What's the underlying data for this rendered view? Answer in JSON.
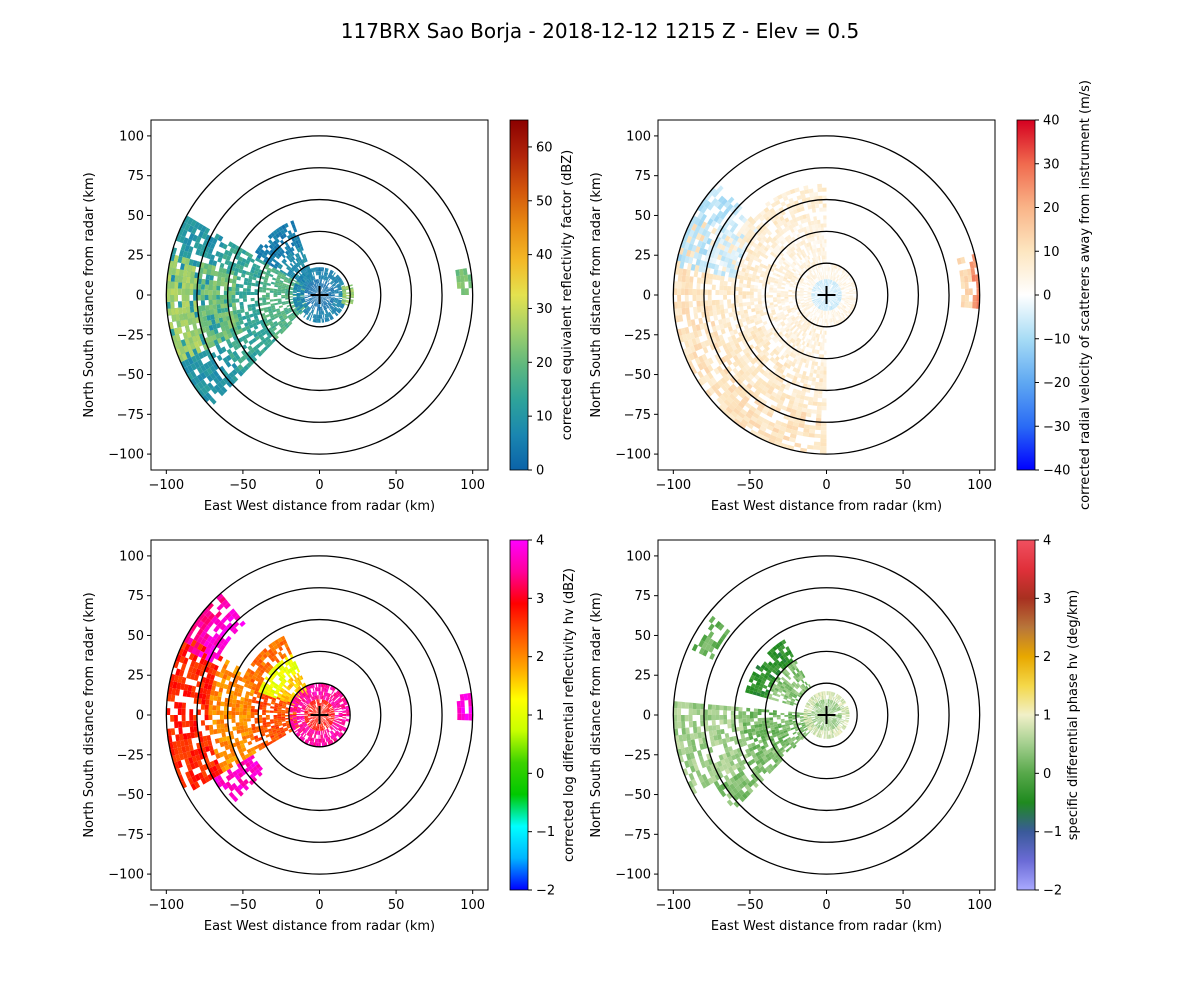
{
  "figure": {
    "title": "117BRX Sao Borja - 2018-12-12 1215 Z -  Elev = 0.5"
  },
  "chart_data": [
    {
      "type": "radar-ppi",
      "field": "reflectivity",
      "xlabel": "East West distance from radar (km)",
      "ylabel": "North South distance from radar (km)",
      "xlim": [
        -110,
        110
      ],
      "ylim": [
        -110,
        110
      ],
      "xticks": [
        -100,
        -50,
        0,
        50,
        100
      ],
      "yticks": [
        -100,
        -75,
        -50,
        -25,
        0,
        25,
        50,
        75,
        100
      ],
      "range_rings_km": [
        20,
        40,
        60,
        80,
        100
      ],
      "radar_marker": "+",
      "colorbar": {
        "label": "corrected equivalent reflectivity factor (dBZ)",
        "min": 0,
        "max": 65,
        "ticks": [
          0,
          10,
          20,
          30,
          40,
          50,
          60
        ],
        "colors": [
          "#0b63a8",
          "#1a86b0",
          "#2ea39a",
          "#5fb87e",
          "#a3d06a",
          "#e4e24f",
          "#f3b826",
          "#e88a12",
          "#d2550b",
          "#b0230a",
          "#8b0000"
        ]
      },
      "echo_regions": [
        {
          "az1": 225,
          "az2": 300,
          "r1": 10,
          "r2": 99,
          "values": [
            18,
            14,
            10
          ]
        },
        {
          "az1": 245,
          "az2": 285,
          "r1": 55,
          "r2": 100,
          "values": [
            22,
            26
          ]
        },
        {
          "az1": 300,
          "az2": 340,
          "r1": 10,
          "r2": 50,
          "values": [
            8,
            5
          ]
        },
        {
          "az1": 0,
          "az2": 360,
          "r1": 0,
          "r2": 16,
          "values": [
            2,
            6
          ]
        },
        {
          "az1": 70,
          "az2": 110,
          "r1": 15,
          "r2": 22,
          "values": [
            25
          ]
        },
        {
          "az1": 80,
          "az2": 90,
          "r1": 90,
          "r2": 100,
          "values": [
            22
          ]
        }
      ]
    },
    {
      "type": "radar-ppi",
      "field": "velocity",
      "xlabel": "East West distance from radar (km)",
      "ylabel": "North South distance from radar (km)",
      "xlim": [
        -110,
        110
      ],
      "ylim": [
        -110,
        110
      ],
      "xticks": [
        -100,
        -50,
        0,
        50,
        100
      ],
      "yticks": [
        -100,
        -75,
        -50,
        -25,
        0,
        25,
        50,
        75,
        100
      ],
      "range_rings_km": [
        20,
        40,
        60,
        80,
        100
      ],
      "radar_marker": "+",
      "colorbar": {
        "label": "corrected radial velocity of scatterers away from instrument (m/s)",
        "min": -40,
        "max": 40,
        "ticks": [
          -40,
          -30,
          -20,
          -10,
          0,
          10,
          20,
          30,
          40
        ],
        "colors": [
          "#0000ff",
          "#2a6bf5",
          "#5fa8f2",
          "#a7dcf5",
          "#ffffff",
          "#fde6c0",
          "#f9b488",
          "#f06a4e",
          "#d50020"
        ]
      },
      "echo_regions": [
        {
          "az1": 180,
          "az2": 300,
          "r1": 20,
          "r2": 99,
          "values": [
            6,
            8,
            10
          ]
        },
        {
          "az1": 280,
          "az2": 315,
          "r1": 60,
          "r2": 100,
          "values": [
            -5,
            -8
          ]
        },
        {
          "az1": 300,
          "az2": 360,
          "r1": 20,
          "r2": 70,
          "values": [
            5,
            7
          ]
        },
        {
          "az1": 0,
          "az2": 360,
          "r1": 0,
          "r2": 18,
          "values": [
            -6,
            4
          ]
        },
        {
          "az1": 75,
          "az2": 95,
          "r1": 88,
          "r2": 100,
          "values": [
            12,
            25
          ]
        }
      ]
    },
    {
      "type": "radar-ppi",
      "field": "differential-reflectivity",
      "xlabel": "East West distance from radar (km)",
      "ylabel": "North South distance from radar (km)",
      "xlim": [
        -110,
        110
      ],
      "ylim": [
        -110,
        110
      ],
      "xticks": [
        -100,
        -50,
        0,
        50,
        100
      ],
      "yticks": [
        -100,
        -75,
        -50,
        -25,
        0,
        25,
        50,
        75,
        100
      ],
      "range_rings_km": [
        20,
        40,
        60,
        80,
        100
      ],
      "radar_marker": "+",
      "colorbar": {
        "label": "corrected log differential reflectivity hv (dBZ)",
        "min": -2,
        "max": 4,
        "ticks": [
          -2,
          -1,
          0,
          1,
          2,
          3,
          4
        ],
        "colors": [
          "#0000ff",
          "#00b4ff",
          "#00ffff",
          "#00c800",
          "#3cd200",
          "#c8ff00",
          "#ffff00",
          "#ffa500",
          "#ff5500",
          "#ff0000",
          "#ff0099",
          "#ff00ff"
        ]
      },
      "echo_regions": [
        {
          "az1": 240,
          "az2": 300,
          "r1": 15,
          "r2": 99,
          "values": [
            2.4,
            2.0,
            2.7
          ]
        },
        {
          "az1": 290,
          "az2": 335,
          "r1": 15,
          "r2": 55,
          "values": [
            1.6,
            1.1,
            2.2
          ]
        },
        {
          "az1": 295,
          "az2": 320,
          "r1": 75,
          "r2": 99,
          "values": [
            3.8,
            3.5
          ]
        },
        {
          "az1": 225,
          "az2": 240,
          "r1": 50,
          "r2": 80,
          "values": [
            3.7
          ]
        },
        {
          "az1": 0,
          "az2": 360,
          "r1": 0,
          "r2": 18,
          "values": [
            2.8,
            3.5
          ]
        },
        {
          "az1": 82,
          "az2": 92,
          "r1": 90,
          "r2": 100,
          "values": [
            3.8
          ]
        }
      ]
    },
    {
      "type": "radar-ppi",
      "field": "specific-differential-phase",
      "xlabel": "East West distance from radar (km)",
      "ylabel": "North South distance from radar (km)",
      "xlim": [
        -110,
        110
      ],
      "ylim": [
        -110,
        110
      ],
      "xticks": [
        -100,
        -50,
        0,
        50,
        100
      ],
      "yticks": [
        -100,
        -75,
        -50,
        -25,
        0,
        25,
        50,
        75,
        100
      ],
      "range_rings_km": [
        20,
        40,
        60,
        80,
        100
      ],
      "radar_marker": "+",
      "colorbar": {
        "label": "specific differential phase hv (deg/km)",
        "min": -2,
        "max": 4,
        "ticks": [
          -2,
          -1,
          0,
          1,
          2,
          3,
          4
        ],
        "colors": [
          "#a9a9ff",
          "#6b6bd6",
          "#3a5a9a",
          "#1f8a1f",
          "#57a84a",
          "#a3cf8e",
          "#f1f0c8",
          "#f4d84a",
          "#e8a800",
          "#b8763a",
          "#a83020",
          "#e0303a",
          "#f05060"
        ]
      },
      "echo_regions": [
        {
          "az1": 240,
          "az2": 275,
          "r1": 10,
          "r2": 99,
          "values": [
            0.2,
            0.5
          ]
        },
        {
          "az1": 225,
          "az2": 240,
          "r1": 10,
          "r2": 85,
          "values": [
            0.3
          ]
        },
        {
          "az1": 285,
          "az2": 330,
          "r1": 20,
          "r2": 55,
          "values": [
            0.3,
            -0.4
          ]
        },
        {
          "az1": 295,
          "az2": 310,
          "r1": 82,
          "r2": 95,
          "values": [
            0.1
          ]
        },
        {
          "az1": 0,
          "az2": 360,
          "r1": 0,
          "r2": 15,
          "values": [
            0.4,
            0.8
          ]
        }
      ]
    }
  ]
}
